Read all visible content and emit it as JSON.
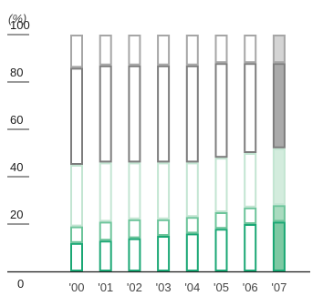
{
  "chart_data": {
    "type": "bar",
    "stacked": true,
    "ylabel": "(%)",
    "ylim": [
      0,
      100
    ],
    "yticks": [
      0,
      20,
      40,
      60,
      80,
      100
    ],
    "categories": [
      "'00",
      "'01",
      "'02",
      "'03",
      "'04",
      "'05",
      "'06",
      "'07"
    ],
    "series": [
      {
        "values": [
          12,
          13,
          14,
          15,
          16,
          18,
          20,
          21
        ],
        "color": "#1aa774",
        "highlight_fill": "#7dc9a3"
      },
      {
        "values": [
          7,
          8,
          8,
          7,
          7,
          7,
          7,
          7
        ],
        "color": "#6cc49a",
        "highlight_fill": "#a9dbbf"
      },
      {
        "values": [
          26,
          25,
          24,
          24,
          23,
          23,
          23,
          24
        ],
        "color": "#c3e5d2",
        "highlight_fill": "#d3ecdd"
      },
      {
        "values": [
          41,
          41,
          41,
          41,
          41,
          40,
          38,
          36
        ],
        "color": "#7d7d7d",
        "highlight_fill": "#aaaaaa"
      },
      {
        "values": [
          14,
          13,
          13,
          13,
          13,
          12,
          12,
          12
        ],
        "color": "#a6a6a6",
        "highlight_fill": "#d4d4d4"
      }
    ],
    "highlight_category": "'07",
    "grid": false,
    "legend": "none"
  }
}
